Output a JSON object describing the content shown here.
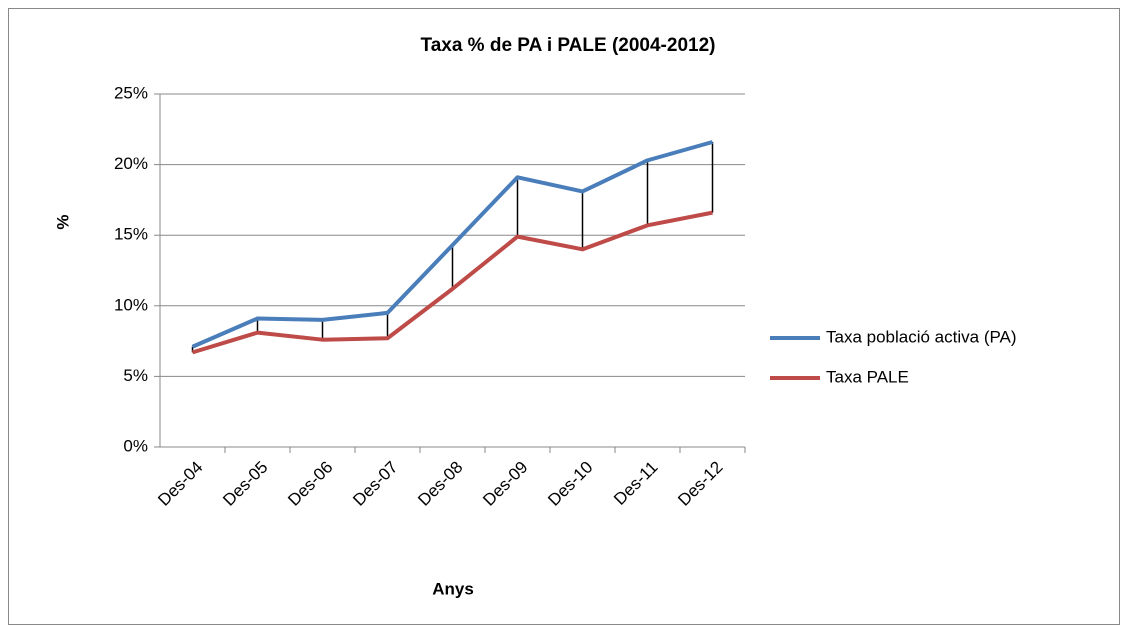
{
  "chart_data": {
    "type": "line",
    "title": "Taxa % de PA i PALE (2004-2012)",
    "x_label": "Anys",
    "y_label": "%",
    "categories": [
      "Des-04",
      "Des-05",
      "Des-06",
      "Des-07",
      "Des-08",
      "Des-09",
      "Des-10",
      "Des-11",
      "Des-12"
    ],
    "series": [
      {
        "name": "Taxa població activa (PA)",
        "color": "#4a7ebb",
        "values": [
          7.1,
          9.1,
          9.0,
          9.5,
          14.3,
          19.1,
          18.1,
          20.3,
          21.6
        ]
      },
      {
        "name": "Taxa PALE",
        "color": "#be4b48",
        "values": [
          6.7,
          8.1,
          7.6,
          7.7,
          11.2,
          14.9,
          14.0,
          15.7,
          16.6
        ]
      }
    ],
    "ylim": [
      0,
      25
    ],
    "yticks": [
      {
        "value": 0,
        "label": "0%"
      },
      {
        "value": 5,
        "label": "5%"
      },
      {
        "value": 10,
        "label": "10%"
      },
      {
        "value": 15,
        "label": "15%"
      },
      {
        "value": 20,
        "label": "20%"
      },
      {
        "value": 25,
        "label": "25%"
      }
    ],
    "grid": true,
    "high_low_lines": true,
    "legend": "right"
  }
}
